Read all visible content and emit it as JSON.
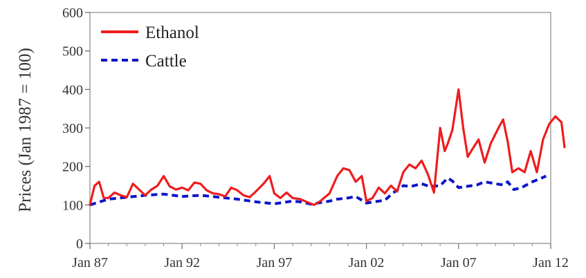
{
  "chart_data": {
    "type": "line",
    "ylabel": "Prices (Jan 1987 = 100)",
    "xlabel": "",
    "ylim": [
      0,
      600
    ],
    "xlim": [
      "1987-01",
      "2012-01"
    ],
    "yticks": [
      0,
      100,
      200,
      300,
      400,
      500,
      600
    ],
    "xticks": [
      {
        "label": "Jan 87",
        "value": "1987-01"
      },
      {
        "label": "Jan 92",
        "value": "1992-01"
      },
      {
        "label": "Jan 97",
        "value": "1997-01"
      },
      {
        "label": "Jan 02",
        "value": "2002-01"
      },
      {
        "label": "Jan 07",
        "value": "2007-01"
      },
      {
        "label": "Jan 12",
        "value": "2012-01"
      }
    ],
    "legend_position": "top-left",
    "grid": false,
    "series": [
      {
        "name": "Ethanol",
        "color": "#ee1c1c",
        "style": "solid",
        "points": [
          [
            "1987-01",
            100
          ],
          [
            "1987-04",
            150
          ],
          [
            "1987-07",
            160
          ],
          [
            "1987-10",
            118
          ],
          [
            "1988-01",
            118
          ],
          [
            "1988-05",
            132
          ],
          [
            "1988-09",
            125
          ],
          [
            "1989-01",
            120
          ],
          [
            "1989-05",
            155
          ],
          [
            "1989-09",
            140
          ],
          [
            "1990-01",
            125
          ],
          [
            "1990-05",
            140
          ],
          [
            "1990-09",
            150
          ],
          [
            "1991-01",
            175
          ],
          [
            "1991-05",
            148
          ],
          [
            "1991-09",
            140
          ],
          [
            "1992-01",
            145
          ],
          [
            "1992-05",
            138
          ],
          [
            "1992-09",
            158
          ],
          [
            "1993-01",
            155
          ],
          [
            "1993-05",
            138
          ],
          [
            "1993-09",
            130
          ],
          [
            "1994-01",
            128
          ],
          [
            "1994-05",
            122
          ],
          [
            "1994-09",
            145
          ],
          [
            "1995-01",
            138
          ],
          [
            "1995-05",
            125
          ],
          [
            "1995-09",
            120
          ],
          [
            "1996-01",
            135
          ],
          [
            "1996-06",
            155
          ],
          [
            "1996-10",
            175
          ],
          [
            "1997-01",
            130
          ],
          [
            "1997-05",
            118
          ],
          [
            "1997-09",
            132
          ],
          [
            "1998-01",
            118
          ],
          [
            "1998-06",
            115
          ],
          [
            "1998-10",
            108
          ],
          [
            "1999-03",
            100
          ],
          [
            "1999-07",
            110
          ],
          [
            "2000-01",
            130
          ],
          [
            "2000-06",
            175
          ],
          [
            "2000-10",
            195
          ],
          [
            "2001-02",
            190
          ],
          [
            "2001-06",
            160
          ],
          [
            "2001-10",
            175
          ],
          [
            "2002-01",
            110
          ],
          [
            "2002-05",
            118
          ],
          [
            "2002-09",
            145
          ],
          [
            "2003-01",
            130
          ],
          [
            "2003-05",
            150
          ],
          [
            "2003-09",
            135
          ],
          [
            "2004-01",
            185
          ],
          [
            "2004-05",
            205
          ],
          [
            "2004-09",
            195
          ],
          [
            "2005-01",
            215
          ],
          [
            "2005-05",
            180
          ],
          [
            "2005-09",
            132
          ],
          [
            "2006-01",
            300
          ],
          [
            "2006-04",
            240
          ],
          [
            "2006-06",
            260
          ],
          [
            "2006-09",
            295
          ],
          [
            "2007-01",
            400
          ],
          [
            "2007-04",
            300
          ],
          [
            "2007-07",
            225
          ],
          [
            "2007-10",
            245
          ],
          [
            "2008-02",
            270
          ],
          [
            "2008-06",
            210
          ],
          [
            "2008-10",
            260
          ],
          [
            "2009-03",
            300
          ],
          [
            "2009-06",
            322
          ],
          [
            "2009-09",
            265
          ],
          [
            "2009-12",
            185
          ],
          [
            "2010-04",
            195
          ],
          [
            "2010-08",
            185
          ],
          [
            "2010-12",
            240
          ],
          [
            "2011-04",
            185
          ],
          [
            "2011-08",
            270
          ],
          [
            "2011-12",
            310
          ],
          [
            "2012-04",
            330
          ],
          [
            "2012-08",
            315
          ],
          [
            "2012-10",
            250
          ]
        ]
      },
      {
        "name": "Cattle",
        "color": "#0b14c8",
        "style": "dashed",
        "points": [
          [
            "1987-01",
            100
          ],
          [
            "1988-01",
            115
          ],
          [
            "1989-01",
            120
          ],
          [
            "1990-01",
            125
          ],
          [
            "1991-01",
            128
          ],
          [
            "1992-01",
            122
          ],
          [
            "1993-01",
            125
          ],
          [
            "1994-01",
            120
          ],
          [
            "1995-01",
            115
          ],
          [
            "1996-01",
            108
          ],
          [
            "1997-01",
            103
          ],
          [
            "1998-01",
            110
          ],
          [
            "1998-06",
            108
          ],
          [
            "1999-01",
            102
          ],
          [
            "2000-01",
            110
          ],
          [
            "2000-06",
            115
          ],
          [
            "2001-01",
            118
          ],
          [
            "2001-06",
            122
          ],
          [
            "2002-01",
            105
          ],
          [
            "2002-09",
            110
          ],
          [
            "2003-01",
            112
          ],
          [
            "2003-06",
            130
          ],
          [
            "2004-01",
            150
          ],
          [
            "2004-06",
            148
          ],
          [
            "2005-01",
            155
          ],
          [
            "2005-06",
            148
          ],
          [
            "2006-01",
            150
          ],
          [
            "2006-06",
            170
          ],
          [
            "2006-09",
            162
          ],
          [
            "2007-01",
            145
          ],
          [
            "2007-06",
            148
          ],
          [
            "2008-01",
            152
          ],
          [
            "2008-06",
            160
          ],
          [
            "2009-01",
            155
          ],
          [
            "2009-06",
            152
          ],
          [
            "2009-09",
            160
          ],
          [
            "2010-01",
            140
          ],
          [
            "2010-06",
            145
          ],
          [
            "2011-01",
            160
          ],
          [
            "2011-06",
            168
          ],
          [
            "2011-10",
            175
          ]
        ]
      }
    ]
  }
}
